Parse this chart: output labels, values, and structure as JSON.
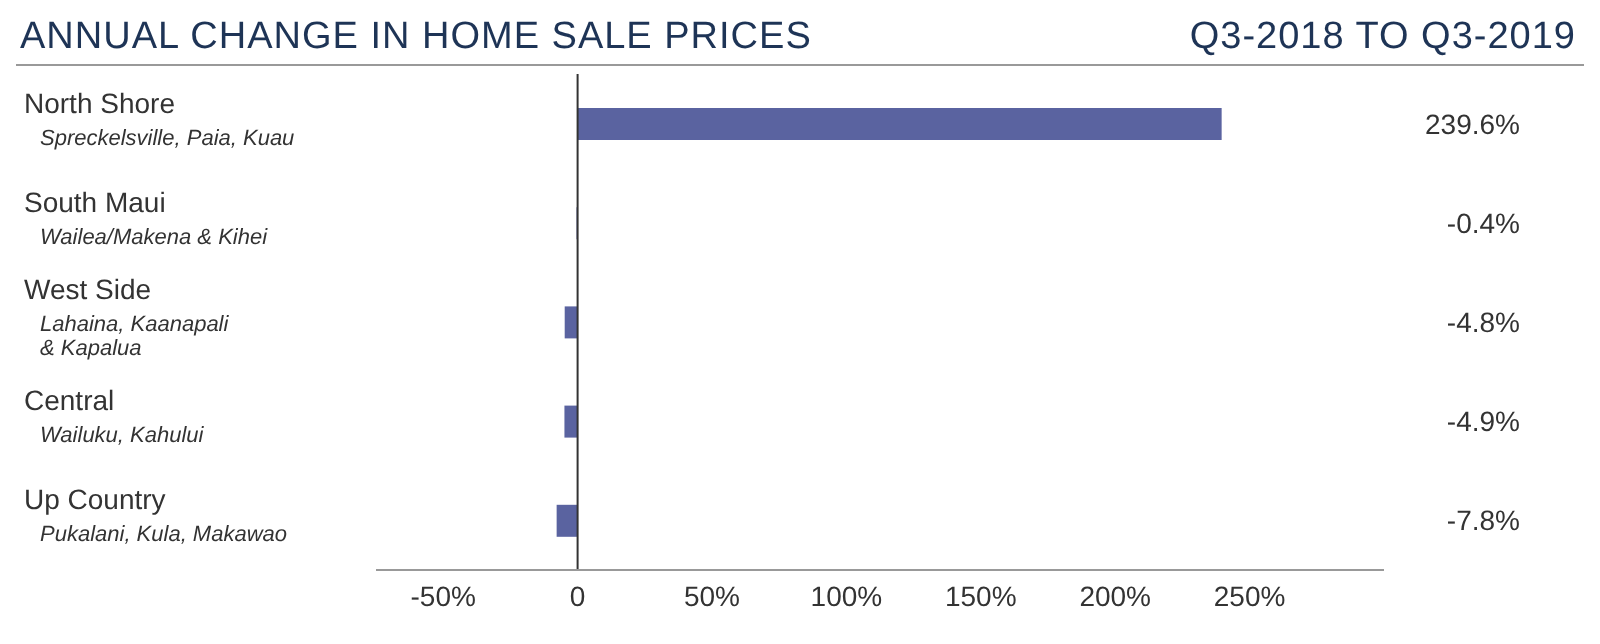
{
  "chart_data": {
    "type": "bar",
    "orientation": "horizontal",
    "title": "ANNUAL CHANGE IN HOME SALE PRICES",
    "subtitle": "Q3-2018 TO Q3-2019",
    "categories": [
      "North Shore\nSpreckelsville, Paia, Kuau",
      "South Maui\nWailea/Makena & Kihei",
      "West Side\nLahaina, Kaanapali\n& Kapalua",
      "Central\nWailuku, Kahului",
      "Up Country\nPukalani, Kula, Makawao"
    ],
    "values": [
      239.6,
      -0.4,
      -4.8,
      -4.9,
      -7.8
    ],
    "value_labels": [
      "239.6%",
      "-0.4%",
      "-4.8%",
      "-4.9%",
      "-7.8%"
    ],
    "color": "#5a63a0",
    "xlim": [
      -75,
      300
    ],
    "xticks": [
      {
        "value": -50,
        "label": "-50%"
      },
      {
        "value": 0,
        "label": "0"
      },
      {
        "value": 50,
        "label": "50%"
      },
      {
        "value": 100,
        "label": "100%"
      },
      {
        "value": 150,
        "label": "150%"
      },
      {
        "value": 200,
        "label": "200%"
      },
      {
        "value": 250,
        "label": "250%"
      }
    ],
    "ref_lines": [
      {
        "axis": "x",
        "value": 0,
        "color": "#333333"
      }
    ],
    "grid": false,
    "legend": false
  }
}
